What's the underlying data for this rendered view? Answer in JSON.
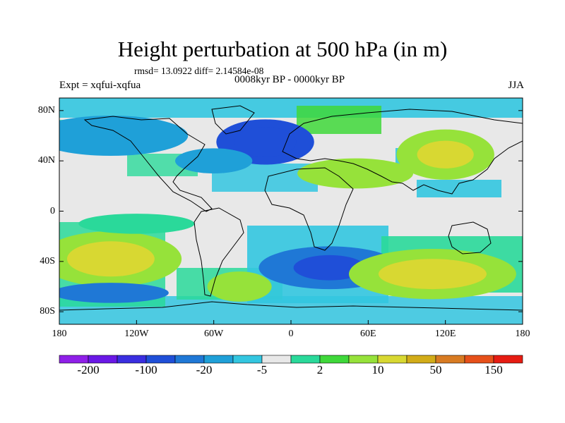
{
  "title": "Height perturbation at 500 hPa (in m)",
  "stats_text": "rmsd= 13.0922 diff= 2.14584e-08",
  "subtitle": "0008kyr BP - 0000kyr BP",
  "left_label": "Expt = xqfui-xqfua",
  "right_label": "JJA",
  "lat_ticks": [
    {
      "label": "80N",
      "value": 80
    },
    {
      "label": "40N",
      "value": 40
    },
    {
      "label": "0",
      "value": 0
    },
    {
      "label": "40S",
      "value": -40
    },
    {
      "label": "80S",
      "value": -80
    }
  ],
  "lon_ticks": [
    {
      "label": "180",
      "value": -180
    },
    {
      "label": "120W",
      "value": -120
    },
    {
      "label": "60W",
      "value": -60
    },
    {
      "label": "0",
      "value": 0
    },
    {
      "label": "60E",
      "value": 60
    },
    {
      "label": "120E",
      "value": 120
    },
    {
      "label": "180",
      "value": 180
    }
  ],
  "colorbar": {
    "colors": [
      "#8f1fe8",
      "#6a18e6",
      "#3a2ee0",
      "#1f4fd8",
      "#1f78d6",
      "#1fa0d8",
      "#33c6e0",
      "#e8e8e8",
      "#2ad99a",
      "#3fd83a",
      "#96e23a",
      "#d8d832",
      "#d2ac18",
      "#d87b22",
      "#e6501a",
      "#e61c12"
    ],
    "labels": [
      {
        "text": "-200",
        "index": 1
      },
      {
        "text": "-100",
        "index": 3
      },
      {
        "text": "-20",
        "index": 5
      },
      {
        "text": "-5",
        "index": 7
      },
      {
        "text": "2",
        "index": 9
      },
      {
        "text": "10",
        "index": 11
      },
      {
        "text": "50",
        "index": 13
      },
      {
        "text": "150",
        "index": 15
      }
    ]
  },
  "anomalies": [
    {
      "lon": -20,
      "lat": 55,
      "rx": 38,
      "ry": 18,
      "color": "#1f4fd8"
    },
    {
      "lon": -20,
      "lat": 55,
      "rx": 24,
      "ry": 12,
      "color": "#1f4fd8"
    },
    {
      "lon": 30,
      "lat": -45,
      "rx": 55,
      "ry": 17,
      "color": "#1f78d6"
    },
    {
      "lon": 30,
      "lat": -45,
      "rx": 28,
      "ry": 10,
      "color": "#1f4fd8"
    },
    {
      "lon": -140,
      "lat": -38,
      "rx": 55,
      "ry": 22,
      "color": "#96e23a"
    },
    {
      "lon": -140,
      "lat": -38,
      "rx": 34,
      "ry": 14,
      "color": "#d8d832"
    },
    {
      "lon": 110,
      "lat": -50,
      "rx": 65,
      "ry": 20,
      "color": "#96e23a"
    },
    {
      "lon": 110,
      "lat": -50,
      "rx": 42,
      "ry": 12,
      "color": "#d8d832"
    },
    {
      "lon": 120,
      "lat": 45,
      "rx": 38,
      "ry": 20,
      "color": "#96e23a"
    },
    {
      "lon": 120,
      "lat": 45,
      "rx": 22,
      "ry": 11,
      "color": "#d8d832"
    },
    {
      "lon": 50,
      "lat": 30,
      "rx": 45,
      "ry": 12,
      "color": "#96e23a"
    },
    {
      "lon": -40,
      "lat": -60,
      "rx": 25,
      "ry": 12,
      "color": "#96e23a"
    },
    {
      "lon": -140,
      "lat": 60,
      "rx": 60,
      "ry": 16,
      "color": "#1fa0d8"
    },
    {
      "lon": -140,
      "lat": -65,
      "rx": 45,
      "ry": 8,
      "color": "#1f78d6"
    },
    {
      "lon": -60,
      "lat": 40,
      "rx": 30,
      "ry": 10,
      "color": "#1fa0d8"
    },
    {
      "lon": -120,
      "lat": -10,
      "rx": 45,
      "ry": 8,
      "color": "#2ad99a"
    }
  ]
}
